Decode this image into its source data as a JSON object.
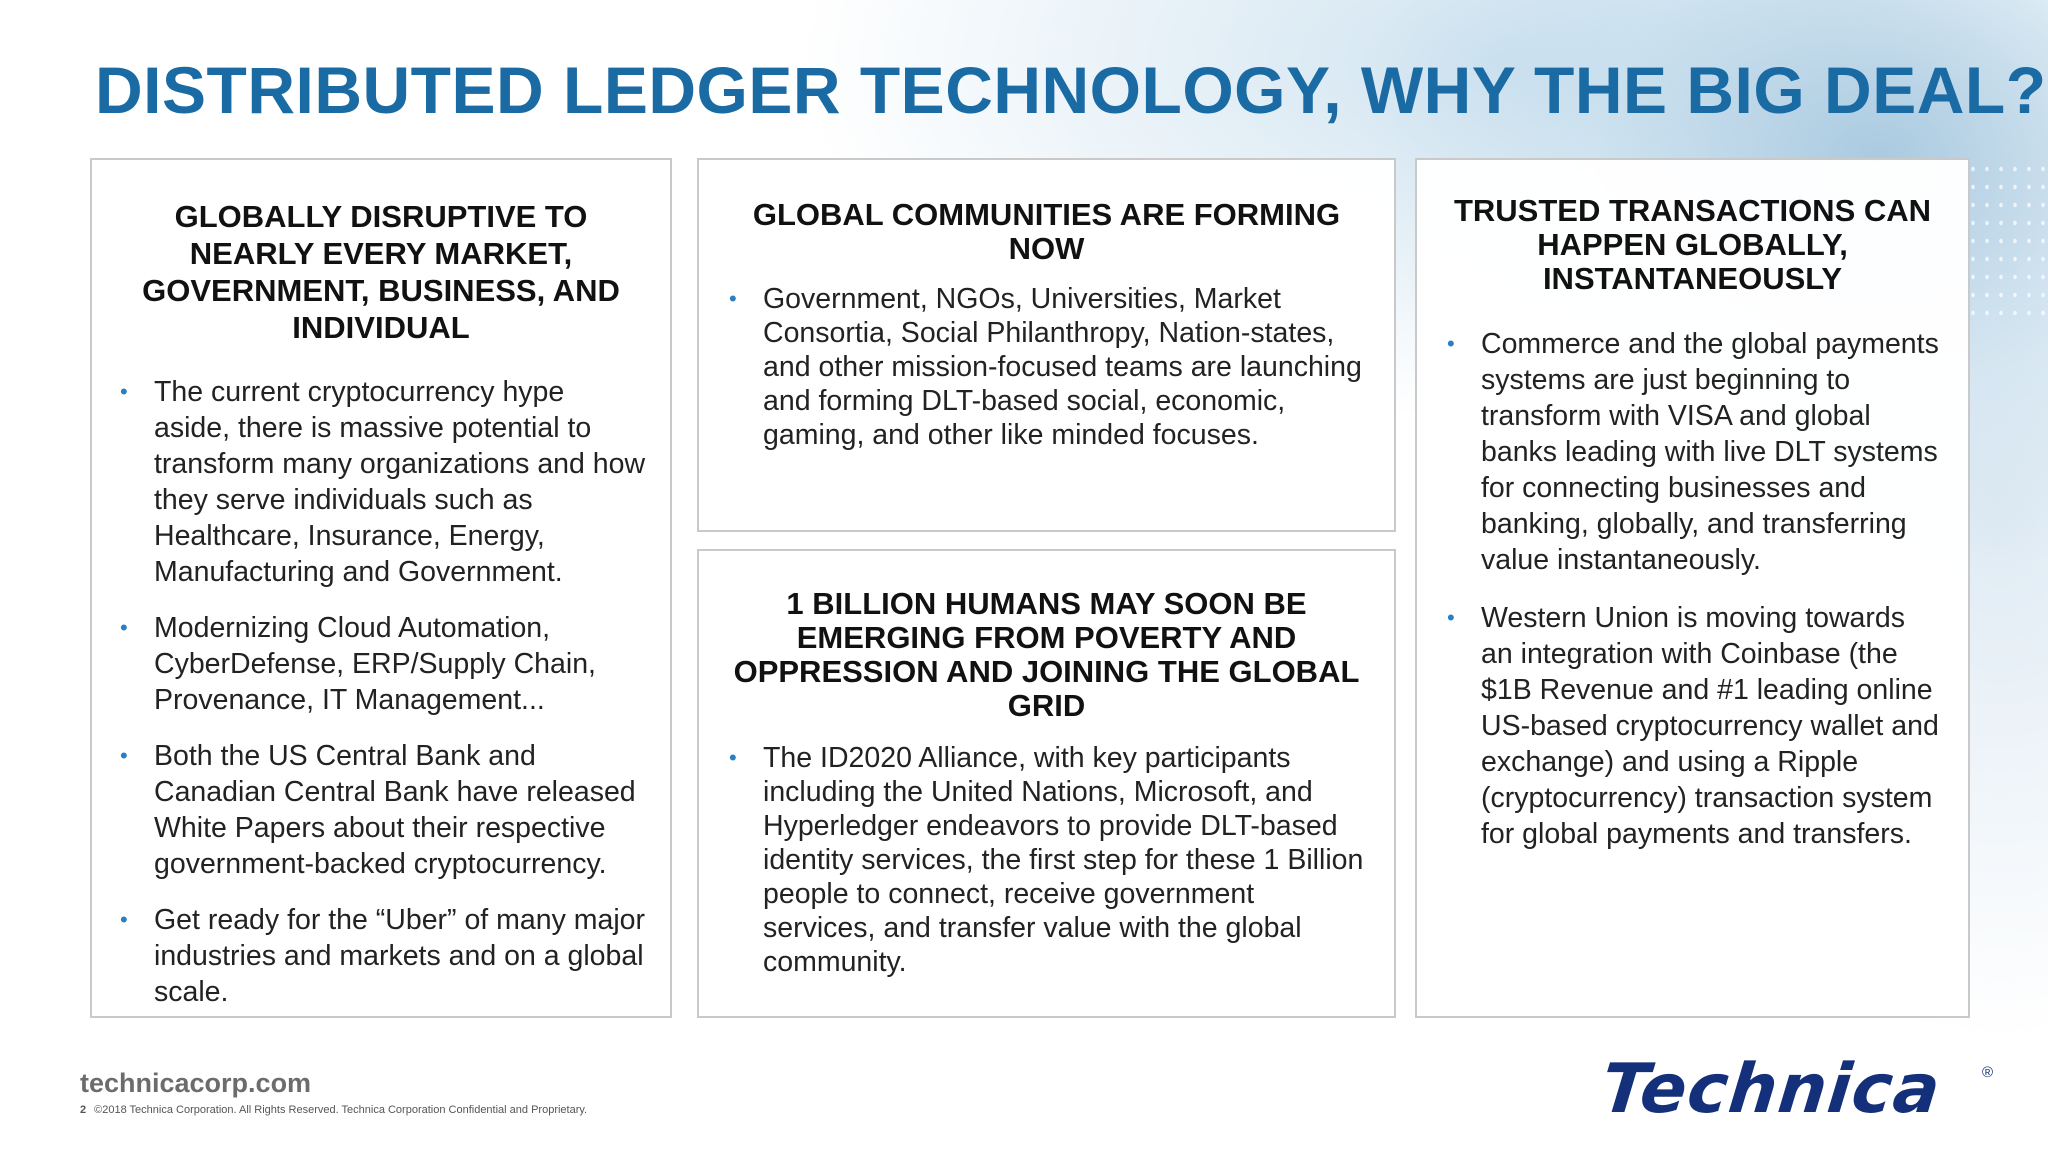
{
  "title": "DISTRIBUTED LEDGER TECHNOLOGY, WHY THE BIG DEAL?",
  "panels": [
    {
      "heading": "GLOBALLY DISRUPTIVE TO NEARLY EVERY MARKET, GOVERNMENT, BUSINESS, AND INDIVIDUAL",
      "bullets": [
        "The current cryptocurrency hype aside, there is massive potential to transform many organizations and how they serve individuals such as Healthcare, Insurance, Energy, Manufacturing and Government.",
        "Modernizing Cloud Automation, CyberDefense, ERP/Supply Chain, Provenance, IT Management...",
        "Both the US Central Bank and Canadian Central Bank have released White Papers about their respective government-backed cryptocurrency.",
        "Get ready for the “Uber” of many major industries and markets and on a global scale."
      ]
    },
    {
      "heading": "GLOBAL COMMUNITIES ARE FORMING NOW",
      "bullets": [
        "Government, NGOs, Universities, Market Consortia, Social Philanthropy, Nation-states, and other mission-focused teams are launching and forming DLT-based social, economic, gaming, and other like minded focuses."
      ]
    },
    {
      "heading": "1 BILLION HUMANS MAY SOON BE EMERGING FROM POVERTY AND OPPRESSION AND JOINING THE GLOBAL GRID",
      "bullets": [
        "The ID2020 Alliance, with key participants including the United Nations, Microsoft, and Hyperledger endeavors to provide DLT-based identity services, the first step for these 1 Billion people to connect, receive government services, and transfer value with the global community."
      ]
    },
    {
      "heading": "TRUSTED TRANSACTIONS CAN HAPPEN GLOBALLY, INSTANTANEOUSLY",
      "bullets": [
        "Commerce and the global payments systems are just beginning to transform with VISA and global banks leading with live DLT systems for connecting businesses and banking, globally, and transferring value instantaneously.",
        "Western Union is moving towards an integration with Coinbase (the $1B Revenue and #1 leading online US-based cryptocurrency wallet and exchange) and using a Ripple (cryptocurrency) transaction system for global payments and transfers."
      ]
    }
  ],
  "bullet_glyph": "•",
  "footer": {
    "url": "technicacorp.com",
    "page_number": "2",
    "legal": "©2018 Technica Corporation. All Rights Reserved. Technica Corporation Confidential and Proprietary."
  },
  "logo": {
    "text": "Technica",
    "registered": "®"
  },
  "colors": {
    "title": "#1a6aa3",
    "bullet": "#2a7fc4",
    "logo": "#14307a",
    "panel_border": "#c9c9c9"
  }
}
